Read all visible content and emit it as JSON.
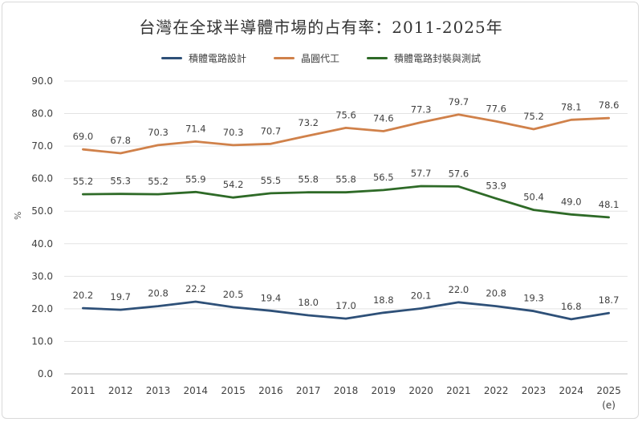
{
  "chart_data": {
    "type": "line",
    "title": "台灣在全球半導體市場的占有率：2011-2025年",
    "xlabel": "",
    "ylabel": "%",
    "ylim": [
      0,
      90
    ],
    "ytick_labels": [
      "0.0",
      "10.0",
      "20.0",
      "30.0",
      "40.0",
      "50.0",
      "60.0",
      "70.0",
      "80.0",
      "90.0"
    ],
    "x": [
      "2011",
      "2012",
      "2013",
      "2014",
      "2015",
      "2016",
      "2017",
      "2018",
      "2019",
      "2020",
      "2021",
      "2022",
      "2023",
      "2024",
      "2025"
    ],
    "x_note": "(e)",
    "grid": true,
    "legend_position": "top",
    "series": [
      {
        "name": "積體電路設計",
        "color": "#2e5078",
        "values": [
          20.2,
          19.7,
          20.8,
          22.2,
          20.5,
          19.4,
          18.0,
          17.0,
          18.8,
          20.1,
          22.0,
          20.8,
          19.3,
          16.8,
          18.7
        ],
        "labels": [
          "20.2",
          "19.7",
          "20.8",
          "22.2",
          "20.5",
          "19.4",
          "18.0",
          "17.0",
          "18.8",
          "20.1",
          "22.0",
          "20.8",
          "19.3",
          "16.8",
          "18.7"
        ]
      },
      {
        "name": "晶圓代工",
        "color": "#d0814a",
        "values": [
          69.0,
          67.8,
          70.3,
          71.4,
          70.3,
          70.7,
          73.2,
          75.6,
          74.6,
          77.3,
          79.7,
          77.6,
          75.2,
          78.1,
          78.6
        ],
        "labels": [
          "69.0",
          "67.8",
          "70.3",
          "71.4",
          "70.3",
          "70.7",
          "73.2",
          "75.6",
          "74.6",
          "77.3",
          "79.7",
          "77.6",
          "75.2",
          "78.1",
          "78.6"
        ]
      },
      {
        "name": "積體電路封裝與測試",
        "color": "#2e6a27",
        "values": [
          55.2,
          55.3,
          55.2,
          55.9,
          54.2,
          55.5,
          55.8,
          55.8,
          56.5,
          57.7,
          57.6,
          53.9,
          50.4,
          49.0,
          48.1
        ],
        "labels": [
          "55.2",
          "55.3",
          "55.2",
          "55.9",
          "54.2",
          "55.5",
          "55.8",
          "55.8",
          "56.5",
          "57.7",
          "57.6",
          "53.9",
          "50.4",
          "49.0",
          "48.1"
        ]
      }
    ]
  }
}
